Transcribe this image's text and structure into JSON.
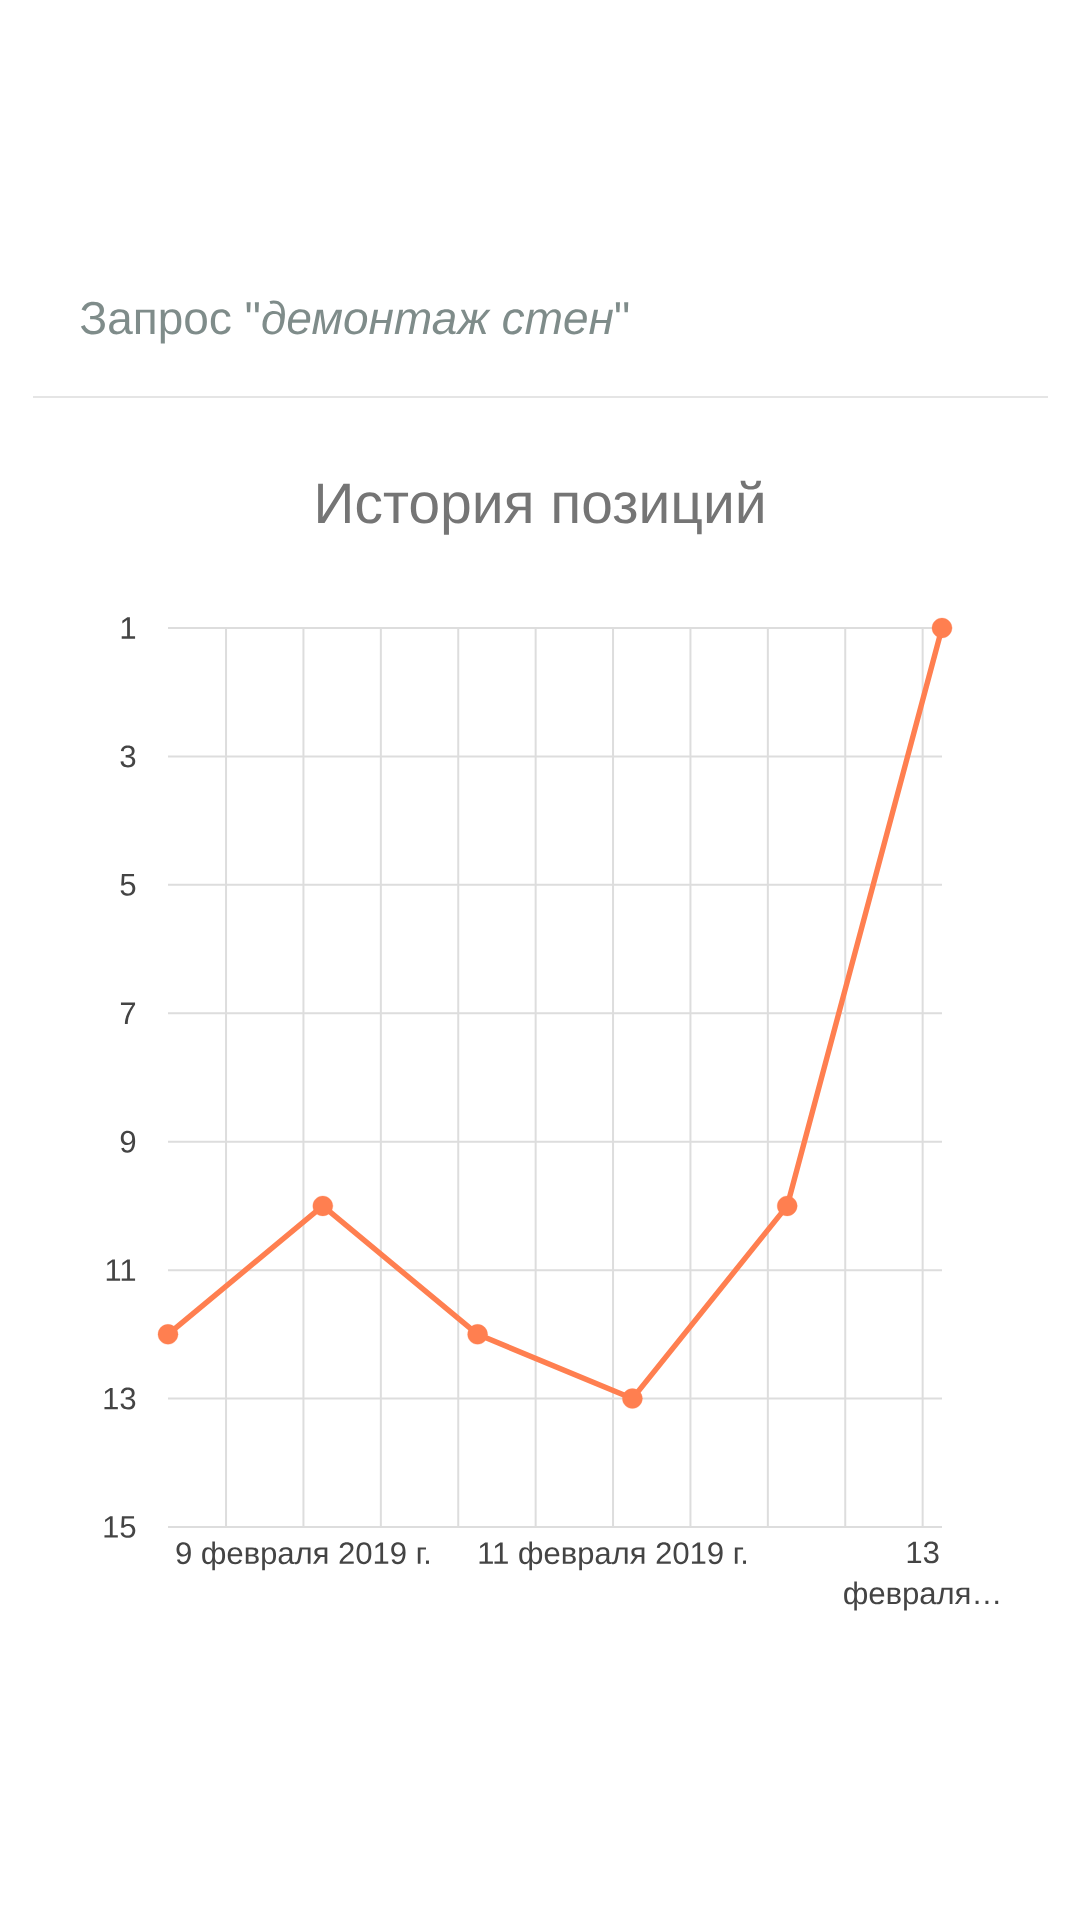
{
  "chart_data": {
    "type": "line",
    "title": "История позиций",
    "subtitle": "Запрос \"*демонтаж стен*\"",
    "x": [
      "2019-02-08T03:00",
      "2019-02-09T03:00",
      "2019-02-10T03:00",
      "2019-02-11T03:00",
      "2019-02-12T03:00",
      "2019-02-13T03:00"
    ],
    "series": [
      {
        "color": "#ff7f50",
        "values": [
          12,
          10,
          12,
          13,
          10,
          1
        ]
      }
    ],
    "xlim": [
      "2019-02-08T03:00",
      "2019-02-13T03:00"
    ],
    "xticks": [
      {
        "value": "2019-02-08T12:00",
        "label": null
      },
      {
        "value": "2019-02-09T00:00",
        "label": "9 февраля 2019 г."
      },
      {
        "value": "2019-02-09T12:00",
        "label": null
      },
      {
        "value": "2019-02-10T00:00",
        "label": null
      },
      {
        "value": "2019-02-10T12:00",
        "label": null
      },
      {
        "value": "2019-02-11T00:00",
        "label": "11 февраля 2019 г."
      },
      {
        "value": "2019-02-11T12:00",
        "label": null
      },
      {
        "value": "2019-02-12T00:00",
        "label": null
      },
      {
        "value": "2019-02-12T12:00",
        "label": null
      },
      {
        "value": "2019-02-13T00:00",
        "label": "13 февраля…"
      }
    ],
    "ylim": [
      15,
      1
    ],
    "yticks": [
      1,
      3,
      5,
      7,
      9,
      11,
      13,
      15
    ],
    "grid": true,
    "marker": "circle",
    "line_style": "solid"
  }
}
